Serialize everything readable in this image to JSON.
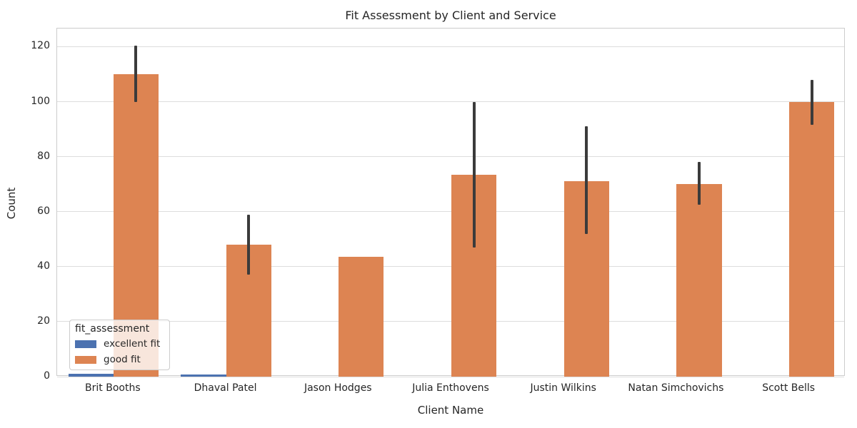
{
  "chart_data": {
    "type": "bar",
    "title": "Fit Assessment by Client and Service",
    "xlabel": "Client Name",
    "ylabel": "Count",
    "categories": [
      "Brit Booths",
      "Dhaval Patel",
      "Jason Hodges",
      "Julia Enthovens",
      "Justin Wilkins",
      "Natan Simchovichs",
      "Scott Bells"
    ],
    "series": [
      {
        "name": "excellent fit",
        "color": "#4c72b0",
        "values": [
          1.1,
          0.9,
          null,
          null,
          null,
          null,
          null
        ],
        "errors": [
          null,
          null,
          null,
          null,
          null,
          null,
          null
        ]
      },
      {
        "name": "good fit",
        "color": "#dd8452",
        "values": [
          110,
          48,
          43.5,
          73.5,
          71,
          70,
          100
        ],
        "errors": [
          [
            100,
            120.5
          ],
          [
            37,
            59
          ],
          null,
          [
            47,
            100
          ],
          [
            52,
            91
          ],
          [
            62.5,
            78
          ],
          [
            91.5,
            108
          ]
        ]
      }
    ],
    "yticks": [
      0,
      20,
      40,
      60,
      80,
      100,
      120
    ],
    "ylim": [
      0,
      126.6
    ],
    "grid": true,
    "group_width_fraction": 0.8,
    "legend": {
      "title": "fit_assessment",
      "position": "lower left"
    },
    "colors": {
      "error_bar": "#3b3b3b",
      "grid_line": "#dddddd",
      "spine": "#cccccc",
      "text": "#262626",
      "background": "#ffffff"
    }
  }
}
